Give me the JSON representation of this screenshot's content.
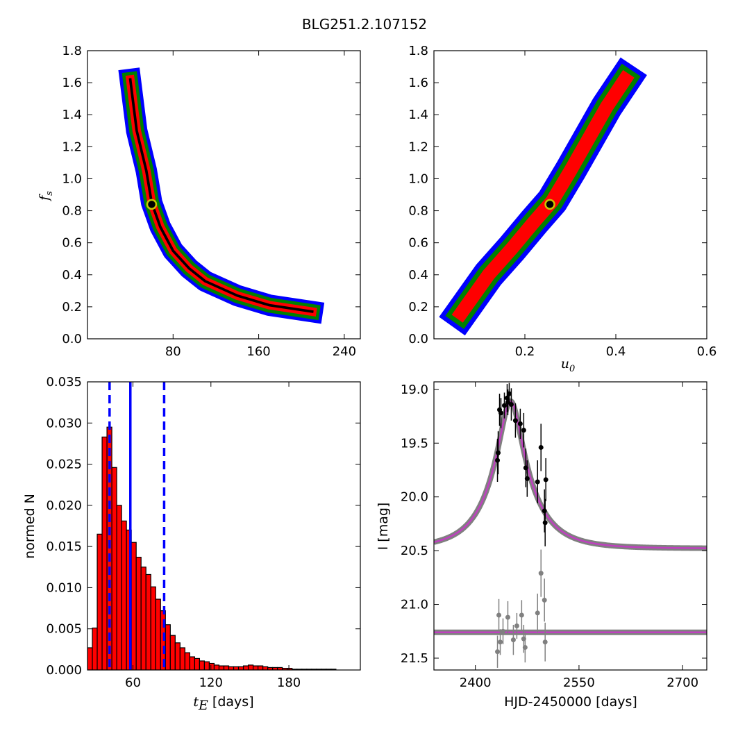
{
  "figure": {
    "title": "BLG251.2.107152"
  },
  "colors": {
    "black": "#000000",
    "red": "#ff0000",
    "green": "#008000",
    "blue": "#0000ff",
    "gray": "#808080",
    "magenta": "#bf40bf",
    "gold": "#c8c800"
  },
  "chart_data": [
    {
      "type": "heatmap",
      "panel": "top-left",
      "xlabel": "",
      "ylabel": "f_s",
      "ylabel_main": "f",
      "ylabel_sub": "s",
      "xlim": [
        0,
        255
      ],
      "ylim": [
        0.0,
        1.8
      ],
      "xticks": [
        80,
        160,
        240
      ],
      "xtick_labels": [
        "80",
        "160",
        "240"
      ],
      "yticks": [
        0.0,
        0.2,
        0.4,
        0.6,
        0.8,
        1.0,
        1.2,
        1.4,
        1.6,
        1.8
      ],
      "ytick_labels": [
        "0.0",
        "0.2",
        "0.4",
        "0.6",
        "0.8",
        "1.0",
        "1.2",
        "1.4",
        "1.6",
        "1.8"
      ],
      "ridge": [
        [
          40,
          1.62
        ],
        [
          46,
          1.3
        ],
        [
          55,
          1.05
        ],
        [
          60,
          0.85
        ],
        [
          68,
          0.7
        ],
        [
          80,
          0.55
        ],
        [
          95,
          0.44
        ],
        [
          110,
          0.36
        ],
        [
          140,
          0.27
        ],
        [
          170,
          0.21
        ],
        [
          210,
          0.17
        ]
      ],
      "band_widths": {
        "blue": 10,
        "green": 7,
        "red": 4,
        "black": 1.2
      },
      "best_fit": {
        "x": 60,
        "y": 0.84
      },
      "legend": "none"
    },
    {
      "type": "heatmap",
      "panel": "top-right",
      "xlabel": "u_0",
      "xlabel_main": "u",
      "xlabel_sub": "0",
      "ylabel": "",
      "xlim": [
        0.0,
        0.6
      ],
      "ylim": [
        0.0,
        1.8
      ],
      "xticks": [
        0.2,
        0.4,
        0.6
      ],
      "xtick_labels": [
        "0.2",
        "0.4",
        "0.6"
      ],
      "yticks": [
        0.0,
        0.2,
        0.4,
        0.6,
        0.8,
        1.0,
        1.2,
        1.4,
        1.6,
        1.8
      ],
      "ytick_labels": [
        "0.0",
        "0.2",
        "0.4",
        "0.6",
        "0.8",
        "1.0",
        "1.2",
        "1.4",
        "1.6",
        "1.8"
      ],
      "ridge": [
        [
          0.06,
          0.16
        ],
        [
          0.12,
          0.4
        ],
        [
          0.17,
          0.56
        ],
        [
          0.22,
          0.73
        ],
        [
          0.26,
          0.86
        ],
        [
          0.3,
          1.05
        ],
        [
          0.34,
          1.25
        ],
        [
          0.38,
          1.45
        ],
        [
          0.42,
          1.62
        ]
      ],
      "band_widths": {
        "blue": 0.035,
        "green": 0.025,
        "red": 0.015
      },
      "best_fit": {
        "x": 0.255,
        "y": 0.84
      },
      "legend": "none"
    },
    {
      "type": "bar",
      "panel": "bottom-left",
      "xlabel": "t_E  [days]",
      "xlabel_main": "t",
      "xlabel_sub": "E",
      "xlabel_rest": " [days]",
      "ylabel": "normed N",
      "xlim": [
        25,
        235
      ],
      "ylim": [
        0.0,
        0.035
      ],
      "xticks": [
        60,
        120,
        180
      ],
      "xtick_labels": [
        "60",
        "120",
        "180"
      ],
      "yticks": [
        0.0,
        0.005,
        0.01,
        0.015,
        0.02,
        0.025,
        0.03,
        0.035
      ],
      "ytick_labels": [
        "0.000",
        "0.005",
        "0.010",
        "0.015",
        "0.020",
        "0.025",
        "0.030",
        "0.035"
      ],
      "bin_start": 25,
      "bin_width": 3.75,
      "values": [
        0.0027,
        0.0051,
        0.0165,
        0.0283,
        0.0295,
        0.0246,
        0.02,
        0.0181,
        0.017,
        0.0155,
        0.0137,
        0.0125,
        0.0116,
        0.0101,
        0.0086,
        0.0072,
        0.0055,
        0.0042,
        0.0033,
        0.0027,
        0.0021,
        0.0016,
        0.0014,
        0.0011,
        0.001,
        0.0008,
        0.0006,
        0.0005,
        0.0005,
        0.0004,
        0.0004,
        0.0004,
        0.0005,
        0.0006,
        0.0005,
        0.0005,
        0.0004,
        0.0003,
        0.0003,
        0.0003,
        0.0002,
        0.0002,
        0.0001,
        0.0001,
        0.0001,
        0.0001,
        0.0001,
        0.0001,
        0.0001,
        0.0001,
        0.0001,
        0.0,
        0.0,
        0.0,
        0.0,
        0.0
      ],
      "median_line": 58,
      "percentile_lines": [
        42,
        84
      ],
      "legend": "none"
    },
    {
      "type": "scatter",
      "panel": "bottom-right",
      "xlabel": "HJD-2450000 [days]",
      "ylabel": "I [mag]",
      "xlim": [
        2340,
        2735
      ],
      "ylim": [
        21.61,
        18.93
      ],
      "inverted_y": true,
      "xticks": [
        2400,
        2550,
        2700
      ],
      "xtick_labels": [
        "2400",
        "2550",
        "2700"
      ],
      "yticks": [
        19.0,
        19.5,
        20.0,
        20.5,
        21.0,
        21.5
      ],
      "ytick_labels": [
        "19.0",
        "19.5",
        "20.0",
        "20.5",
        "21.0",
        "21.5"
      ],
      "model": {
        "t0": 2451,
        "tE": 58,
        "u0": 0.255,
        "fs": 0.84,
        "baseline": 20.48
      },
      "residual_baseline": 21.26,
      "observations": [
        {
          "t": 2435,
          "mag": 19.19,
          "err": 0.15
        },
        {
          "t": 2437,
          "mag": 19.22,
          "err": 0.14
        },
        {
          "t": 2442,
          "mag": 19.15,
          "err": 0.12
        },
        {
          "t": 2446,
          "mag": 19.08,
          "err": 0.13
        },
        {
          "t": 2447,
          "mag": 19.12,
          "err": 0.12
        },
        {
          "t": 2449,
          "mag": 19.04,
          "err": 0.1
        },
        {
          "t": 2452,
          "mag": 19.14,
          "err": 0.15
        },
        {
          "t": 2458,
          "mag": 19.29,
          "err": 0.16
        },
        {
          "t": 2465,
          "mag": 19.32,
          "err": 0.14
        },
        {
          "t": 2470,
          "mag": 19.38,
          "err": 0.16
        },
        {
          "t": 2473,
          "mag": 19.73,
          "err": 0.18
        },
        {
          "t": 2475,
          "mag": 19.83,
          "err": 0.17
        },
        {
          "t": 2432,
          "mag": 19.66,
          "err": 0.2
        },
        {
          "t": 2433,
          "mag": 19.59,
          "err": 0.2
        },
        {
          "t": 2490,
          "mag": 19.86,
          "err": 0.2
        },
        {
          "t": 2495,
          "mag": 19.54,
          "err": 0.22
        },
        {
          "t": 2500,
          "mag": 20.13,
          "err": 0.2
        },
        {
          "t": 2501,
          "mag": 20.24,
          "err": 0.22
        },
        {
          "t": 2502,
          "mag": 19.84,
          "err": 0.2
        }
      ],
      "residuals": [
        {
          "t": 2432,
          "mag": 21.44,
          "err": 0.15
        },
        {
          "t": 2434,
          "mag": 21.1,
          "err": 0.15
        },
        {
          "t": 2436,
          "mag": 21.35,
          "err": 0.12
        },
        {
          "t": 2440,
          "mag": 21.25,
          "err": 0.12
        },
        {
          "t": 2447,
          "mag": 21.12,
          "err": 0.15
        },
        {
          "t": 2455,
          "mag": 21.33,
          "err": 0.14
        },
        {
          "t": 2460,
          "mag": 21.2,
          "err": 0.12
        },
        {
          "t": 2467,
          "mag": 21.1,
          "err": 0.14
        },
        {
          "t": 2470,
          "mag": 21.32,
          "err": 0.13
        },
        {
          "t": 2472,
          "mag": 21.4,
          "err": 0.14
        },
        {
          "t": 2490,
          "mag": 21.08,
          "err": 0.18
        },
        {
          "t": 2495,
          "mag": 20.71,
          "err": 0.22
        },
        {
          "t": 2500,
          "mag": 20.96,
          "err": 0.2
        },
        {
          "t": 2501,
          "mag": 21.35,
          "err": 0.18
        }
      ],
      "legend": "none"
    }
  ]
}
